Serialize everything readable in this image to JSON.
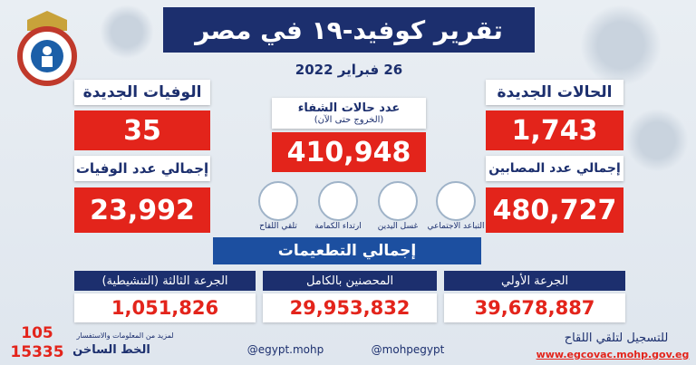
{
  "header": {
    "title": "تقرير كوفيد-١٩ في مصر",
    "date": "26 فبراير 2022"
  },
  "stats": {
    "new_cases": {
      "label": "الحالات الجديدة",
      "value": "1,743"
    },
    "total_cases": {
      "label": "إجمالي عدد المصابين",
      "value": "480,727"
    },
    "recovered": {
      "label": "عدد حالات الشفاء",
      "sublabel": "(الخروج حتى الآن)",
      "value": "410,948"
    },
    "new_deaths": {
      "label": "الوفيات الجديدة",
      "value": "35"
    },
    "total_deaths": {
      "label": "إجمالي عدد الوفيات",
      "value": "23,992"
    }
  },
  "precautions": [
    "التباعد الاجتماعي",
    "غسل اليدين",
    "ارتداء الكمامة",
    "تلقي اللقاح"
  ],
  "vaccination": {
    "title": "إجمالي التطعيمات",
    "items": [
      {
        "label": "الجرعة الأولي",
        "value": "39,678,887"
      },
      {
        "label": "المحصنين بالكامل",
        "value": "29,953,832"
      },
      {
        "label": "الجرعة الثالثة (التنشيطية)",
        "value": "1,051,826"
      }
    ]
  },
  "footer": {
    "hotline_short": "105",
    "hotline_long": "15335",
    "hotline_note": "لمزيد من المعلومات والاستفسار",
    "hotline_label": "الخط الساخن",
    "facebook": "@egypt.mohp",
    "social": "@mohpegypt",
    "register_label": "للتسجيل لتلقي اللقاح",
    "register_url": "www.egcovac.mohp.gov.eg"
  }
}
